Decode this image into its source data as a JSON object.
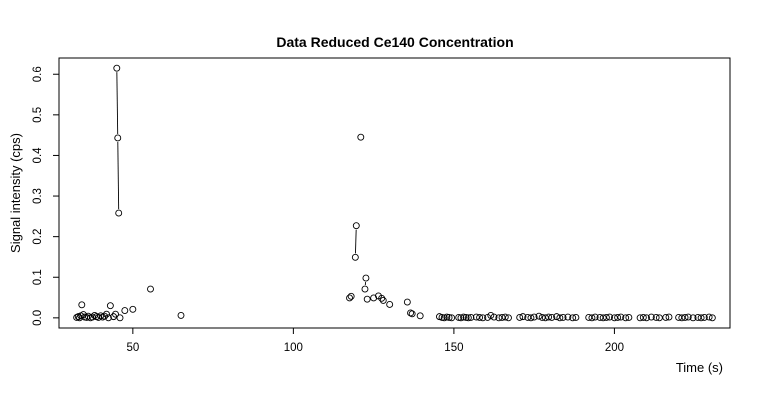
{
  "chart_data": {
    "type": "scatter",
    "title": "Data Reduced Ce140 Concentration",
    "xlabel": "Time (s)",
    "ylabel": "Signal intensity (cps)",
    "xlim": [
      27,
      236
    ],
    "ylim": [
      -0.025,
      0.64
    ],
    "x_ticks": [
      50,
      100,
      150,
      200
    ],
    "y_ticks": [
      0.0,
      0.1,
      0.2,
      0.3,
      0.4,
      0.5,
      0.6
    ],
    "x_tick_labels": [
      "50",
      "100",
      "150",
      "200"
    ],
    "y_tick_labels": [
      "0.0",
      "0.1",
      "0.2",
      "0.3",
      "0.4",
      "0.5",
      "0.6"
    ],
    "grid": false,
    "legend": "none",
    "marker": "open-circle",
    "series": [
      {
        "points": [
          [
            32.5,
            0.001
          ],
          [
            33.0,
            0.003
          ],
          [
            33.4,
            0.0
          ],
          [
            33.8,
            0.005
          ],
          [
            34.1,
            0.032
          ],
          [
            34.6,
            0.008
          ],
          [
            35.0,
            0.002
          ],
          [
            35.6,
            0.001
          ],
          [
            36.1,
            0.004
          ],
          [
            36.8,
            0.0
          ],
          [
            37.4,
            0.002
          ],
          [
            38.1,
            0.006
          ],
          [
            38.7,
            0.003
          ],
          [
            39.3,
            0.001
          ],
          [
            40.0,
            0.005
          ],
          [
            40.6,
            0.002
          ],
          [
            41.2,
            0.004
          ],
          [
            41.8,
            0.009
          ],
          [
            42.4,
            0.0
          ],
          [
            43.0,
            0.03
          ],
          [
            44.0,
            0.003
          ],
          [
            44.6,
            0.009
          ],
          [
            45.0,
            0.615
          ],
          [
            45.3,
            0.443
          ],
          [
            45.6,
            0.258
          ],
          [
            46.0,
            0.0
          ],
          [
            47.5,
            0.018
          ],
          [
            50.0,
            0.021
          ],
          [
            55.5,
            0.071
          ],
          [
            65.0,
            0.006
          ],
          [
            117.5,
            0.049
          ],
          [
            118.0,
            0.053
          ],
          [
            119.3,
            0.149
          ],
          [
            119.6,
            0.227
          ],
          [
            121.0,
            0.445
          ],
          [
            122.3,
            0.071
          ],
          [
            122.6,
            0.098
          ],
          [
            123.0,
            0.046
          ],
          [
            125.0,
            0.049
          ],
          [
            126.5,
            0.054
          ],
          [
            127.5,
            0.048
          ],
          [
            128.0,
            0.043
          ],
          [
            130.0,
            0.033
          ],
          [
            135.5,
            0.039
          ],
          [
            136.5,
            0.012
          ],
          [
            137.0,
            0.01
          ],
          [
            139.5,
            0.005
          ],
          [
            145.5,
            0.003
          ],
          [
            146.3,
            0.001
          ],
          [
            147.0,
            0.0
          ],
          [
            147.8,
            0.002
          ],
          [
            148.5,
            0.001
          ],
          [
            149.3,
            0.0
          ],
          [
            151.5,
            0.001
          ],
          [
            152.2,
            0.0
          ],
          [
            153.0,
            0.002
          ],
          [
            153.8,
            0.001
          ],
          [
            154.5,
            0.0
          ],
          [
            155.3,
            0.001
          ],
          [
            157.0,
            0.002
          ],
          [
            158.0,
            0.001
          ],
          [
            159.0,
            0.0
          ],
          [
            160.5,
            0.001
          ],
          [
            161.5,
            0.006
          ],
          [
            162.5,
            0.002
          ],
          [
            164.0,
            0.0
          ],
          [
            165.0,
            0.001
          ],
          [
            166.0,
            0.002
          ],
          [
            167.0,
            0.0
          ],
          [
            170.5,
            0.001
          ],
          [
            171.5,
            0.003
          ],
          [
            173.0,
            0.001
          ],
          [
            174.0,
            0.0
          ],
          [
            175.0,
            0.002
          ],
          [
            176.5,
            0.004
          ],
          [
            177.5,
            0.001
          ],
          [
            178.5,
            0.0
          ],
          [
            179.5,
            0.002
          ],
          [
            180.5,
            0.001
          ],
          [
            182.0,
            0.003
          ],
          [
            183.0,
            0.0
          ],
          [
            184.0,
            0.001
          ],
          [
            185.5,
            0.002
          ],
          [
            187.0,
            0.0
          ],
          [
            188.0,
            0.001
          ],
          [
            192.0,
            0.001
          ],
          [
            193.0,
            0.0
          ],
          [
            194.0,
            0.002
          ],
          [
            195.5,
            0.001
          ],
          [
            196.5,
            0.0
          ],
          [
            197.5,
            0.001
          ],
          [
            198.5,
            0.002
          ],
          [
            200.0,
            0.0
          ],
          [
            201.0,
            0.001
          ],
          [
            202.0,
            0.002
          ],
          [
            203.5,
            0.0
          ],
          [
            204.5,
            0.001
          ],
          [
            208.0,
            0.0
          ],
          [
            209.0,
            0.001
          ],
          [
            210.0,
            0.0
          ],
          [
            211.5,
            0.002
          ],
          [
            213.0,
            0.001
          ],
          [
            214.0,
            0.0
          ],
          [
            216.0,
            0.001
          ],
          [
            217.0,
            0.002
          ],
          [
            220.0,
            0.001
          ],
          [
            221.0,
            0.0
          ],
          [
            222.0,
            0.001
          ],
          [
            223.0,
            0.002
          ],
          [
            224.5,
            0.0
          ],
          [
            226.0,
            0.001
          ],
          [
            227.0,
            0.0
          ],
          [
            228.0,
            0.001
          ],
          [
            229.5,
            0.002
          ],
          [
            230.5,
            0.0
          ]
        ],
        "line_segments": [
          [
            [
              45.0,
              0.615
            ],
            [
              45.3,
              0.443
            ]
          ],
          [
            [
              45.3,
              0.443
            ],
            [
              45.6,
              0.258
            ]
          ],
          [
            [
              119.3,
              0.149
            ],
            [
              119.6,
              0.227
            ]
          ],
          [
            [
              122.3,
              0.071
            ],
            [
              122.6,
              0.098
            ]
          ]
        ]
      }
    ]
  }
}
